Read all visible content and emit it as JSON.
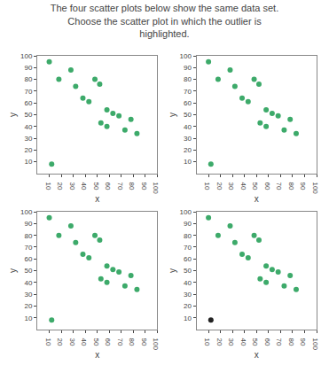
{
  "chart_data": [
    {
      "type": "scatter",
      "title": "The four scatter plots below show the same data set. Choose the scatter plot in which the outlier is highlighted.",
      "xlabel": "x",
      "ylabel": "y",
      "xlim": [
        0,
        100
      ],
      "ylim": [
        0,
        100
      ],
      "xticks": [
        10,
        20,
        30,
        40,
        50,
        60,
        70,
        80,
        90,
        100
      ],
      "yticks": [
        10,
        20,
        30,
        40,
        50,
        60,
        70,
        80,
        90,
        100
      ],
      "grid": false,
      "series": [
        {
          "color": "#3daa6a",
          "x": [
            10,
            28,
            18,
            32,
            48,
            52,
            38,
            43,
            58,
            63,
            68,
            78,
            53,
            58,
            73,
            83,
            12
          ],
          "values": [
            95,
            88,
            80,
            74,
            80,
            76,
            64,
            61,
            54,
            51,
            49,
            46,
            43,
            40,
            37,
            34,
            8
          ]
        }
      ]
    },
    {
      "type": "scatter",
      "xlabel": "x",
      "ylabel": "y",
      "xlim": [
        0,
        100
      ],
      "ylim": [
        0,
        100
      ],
      "xticks": [
        10,
        20,
        30,
        40,
        50,
        60,
        70,
        80,
        90,
        100
      ],
      "yticks": [
        10,
        20,
        30,
        40,
        50,
        60,
        70,
        80,
        90,
        100
      ],
      "grid": false,
      "series": [
        {
          "color": "#3daa6a",
          "x": [
            10,
            28,
            18,
            32,
            48,
            52,
            38,
            43,
            58,
            63,
            68,
            78,
            53,
            58,
            73,
            83,
            12
          ],
          "values": [
            95,
            88,
            80,
            74,
            80,
            76,
            64,
            61,
            54,
            51,
            49,
            46,
            43,
            40,
            37,
            34,
            8
          ]
        }
      ]
    },
    {
      "type": "scatter",
      "xlabel": "x",
      "ylabel": "y",
      "xlim": [
        0,
        100
      ],
      "ylim": [
        0,
        100
      ],
      "xticks": [
        10,
        20,
        30,
        40,
        50,
        60,
        70,
        80,
        90,
        100
      ],
      "yticks": [
        10,
        20,
        30,
        40,
        50,
        60,
        70,
        80,
        90,
        100
      ],
      "grid": false,
      "series": [
        {
          "color": "#3daa6a",
          "x": [
            10,
            28,
            18,
            32,
            48,
            52,
            38,
            43,
            58,
            63,
            68,
            78,
            53,
            58,
            73,
            83,
            12
          ],
          "values": [
            95,
            88,
            80,
            74,
            80,
            76,
            64,
            61,
            54,
            51,
            49,
            46,
            43,
            40,
            37,
            34,
            8
          ]
        }
      ]
    },
    {
      "type": "scatter",
      "xlabel": "x",
      "ylabel": "y",
      "xlim": [
        0,
        100
      ],
      "ylim": [
        0,
        100
      ],
      "xticks": [
        10,
        20,
        30,
        40,
        50,
        60,
        70,
        80,
        90,
        100
      ],
      "yticks": [
        10,
        20,
        30,
        40,
        50,
        60,
        70,
        80,
        90,
        100
      ],
      "grid": false,
      "series": [
        {
          "color": "#3daa6a",
          "x": [
            10,
            28,
            18,
            32,
            48,
            52,
            38,
            43,
            58,
            63,
            68,
            78,
            53,
            58,
            73,
            83
          ],
          "values": [
            95,
            88,
            80,
            74,
            80,
            76,
            64,
            61,
            54,
            51,
            49,
            46,
            43,
            40,
            37,
            34
          ]
        },
        {
          "color": "#222222",
          "x": [
            12
          ],
          "values": [
            8
          ]
        }
      ]
    }
  ]
}
